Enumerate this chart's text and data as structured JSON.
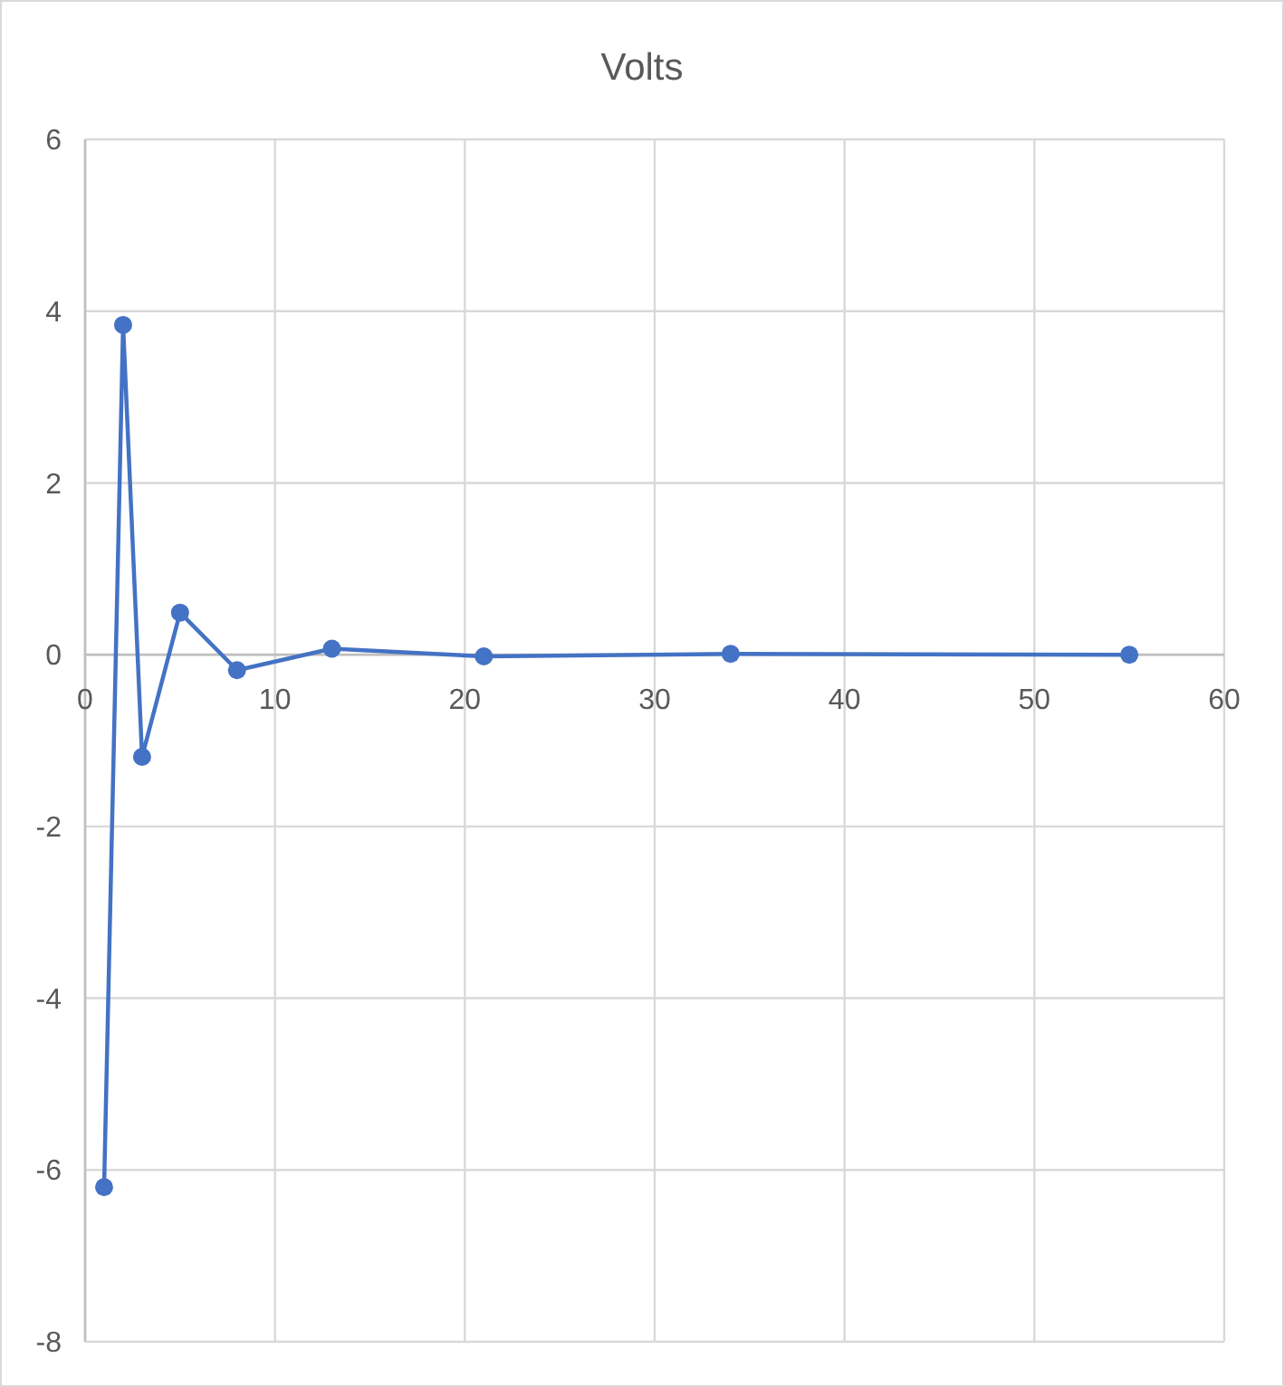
{
  "chart_data": {
    "type": "line",
    "title": "Volts",
    "x": [
      1,
      2,
      3,
      5,
      8,
      13,
      21,
      34,
      55
    ],
    "values": [
      -6.2,
      3.84,
      -1.19,
      0.49,
      -0.18,
      0.07,
      -0.02,
      0.01,
      0
    ],
    "color": "#4472c4",
    "xlim": [
      0,
      60
    ],
    "xticks": [
      0,
      10,
      20,
      30,
      40,
      50,
      60
    ],
    "ylim": [
      -8,
      6
    ],
    "yticks": [
      -8,
      -6,
      -4,
      -2,
      0,
      2,
      4,
      6
    ],
    "grid": true,
    "marker": "circle",
    "line_style": "solid"
  }
}
